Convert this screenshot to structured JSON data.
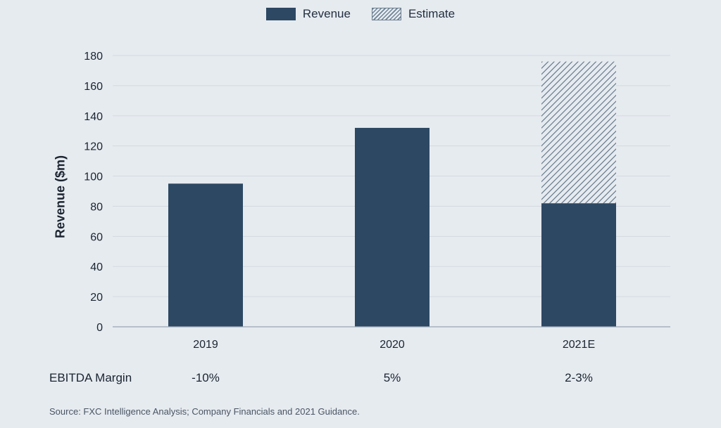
{
  "legend": {
    "revenue": "Revenue",
    "estimate": "Estimate"
  },
  "chart_data": {
    "type": "bar",
    "stacked": true,
    "categories": [
      "2019",
      "2020",
      "2021E"
    ],
    "series": [
      {
        "name": "Revenue",
        "values": [
          95,
          132,
          82
        ],
        "style": "solid"
      },
      {
        "name": "Estimate",
        "values": [
          0,
          0,
          94
        ],
        "style": "hatched"
      }
    ],
    "ylabel": "Revenue ($m)",
    "xlabel": "",
    "ylim": [
      0,
      180
    ],
    "yticks": [
      0,
      20,
      40,
      60,
      80,
      100,
      120,
      140,
      160,
      180
    ],
    "grid": true,
    "legend_position": "top-center",
    "colors": {
      "revenue": "#2d4863",
      "estimate_hatch": "#5c6f82",
      "grid": "#d3d9e0",
      "background": "#e6ebf0"
    }
  },
  "ebitda": {
    "label": "EBITDA Margin",
    "values": [
      "-10%",
      "5%",
      "2-3%"
    ]
  },
  "source": "Source: FXC Intelligence Analysis; Company Financials and 2021 Guidance."
}
